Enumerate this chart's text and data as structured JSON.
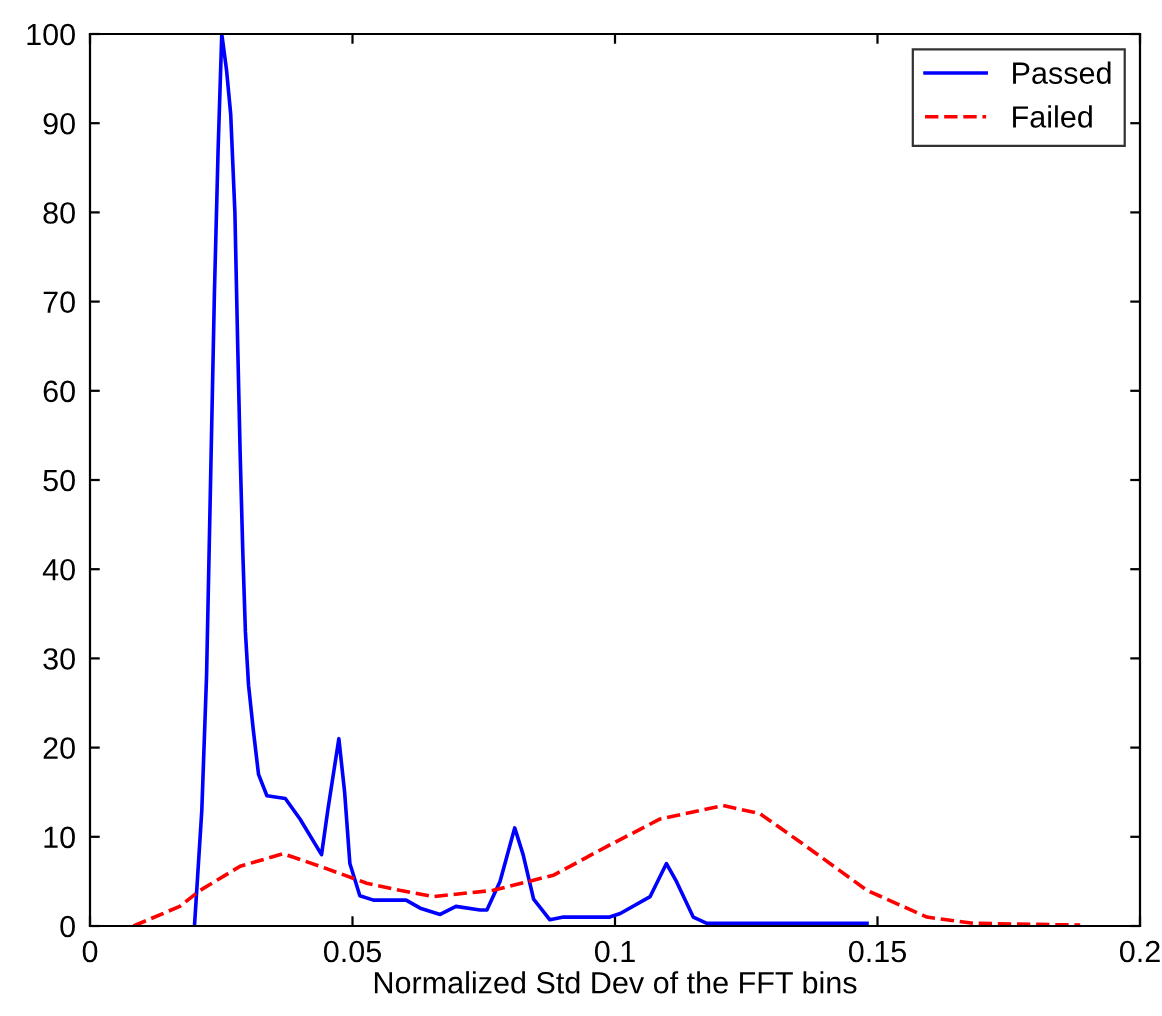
{
  "chart_data": {
    "type": "line",
    "xlabel": "Normalized Std Dev of the FFT bins",
    "xlim": [
      0,
      0.2
    ],
    "xticks": [
      0,
      0.05,
      0.1,
      0.15,
      0.2
    ],
    "ylim": [
      0,
      100
    ],
    "yticks": [
      0,
      10,
      20,
      30,
      40,
      50,
      60,
      70,
      80,
      90,
      100
    ],
    "grid": false,
    "legend": "top right",
    "series": [
      {
        "name": "Passed",
        "color": "#0000ff",
        "line_style": "solid",
        "x": [
          0.0199,
          0.0213,
          0.0222,
          0.0229,
          0.0237,
          0.0244,
          0.0251,
          0.026,
          0.0268,
          0.0276,
          0.0281,
          0.0286,
          0.0291,
          0.0296,
          0.0302,
          0.0311,
          0.0321,
          0.0337,
          0.0372,
          0.04,
          0.0441,
          0.0453,
          0.0474,
          0.0485,
          0.0495,
          0.0514,
          0.054,
          0.0602,
          0.0629,
          0.0667,
          0.0697,
          0.0743,
          0.0756,
          0.0781,
          0.0809,
          0.0825,
          0.0845,
          0.0876,
          0.0902,
          0.099,
          0.101,
          0.1067,
          0.1098,
          0.1117,
          0.1149,
          0.1175,
          0.148
        ],
        "values": [
          0,
          13,
          28,
          48,
          71,
          87,
          100,
          96,
          91,
          80,
          66,
          53,
          42,
          33,
          27,
          22,
          17,
          14.6,
          14.3,
          12,
          8,
          13,
          21,
          15,
          7,
          3.4,
          2.9,
          2.9,
          2,
          1.3,
          2.2,
          1.8,
          1.8,
          5,
          11,
          8,
          3,
          0.7,
          1,
          1,
          1.4,
          3.3,
          7,
          5,
          1,
          0.3,
          0.3
        ]
      },
      {
        "name": "Failed",
        "color": "#ff0000",
        "line_style": "dashed",
        "x": [
          0.0083,
          0.0171,
          0.021,
          0.0286,
          0.0368,
          0.0438,
          0.0527,
          0.059,
          0.0654,
          0.0768,
          0.0883,
          0.0984,
          0.1086,
          0.1206,
          0.1276,
          0.1365,
          0.148,
          0.1594,
          0.1683,
          0.1886
        ],
        "values": [
          0,
          2.2,
          4,
          6.7,
          8.1,
          6.7,
          4.8,
          4,
          3.3,
          4,
          5.7,
          8.9,
          12,
          13.5,
          12.6,
          8.9,
          4,
          1,
          0.3,
          0.1
        ]
      }
    ]
  }
}
